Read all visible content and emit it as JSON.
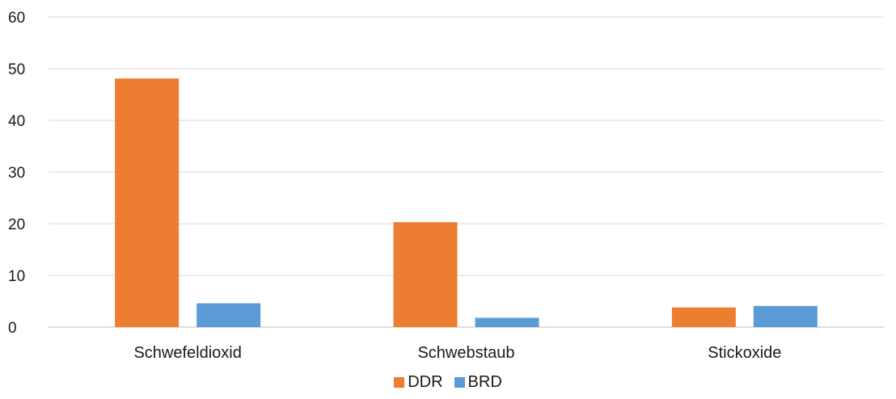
{
  "chart_data": {
    "type": "bar",
    "categories": [
      "Schwefeldioxid",
      "Schwebstaub",
      "Stickoxide"
    ],
    "series": [
      {
        "name": "DDR",
        "values": [
          48.1,
          20.3,
          3.8
        ],
        "color": "#ED7D31"
      },
      {
        "name": "BRD",
        "values": [
          4.6,
          1.8,
          4.1
        ],
        "color": "#5B9BD5"
      }
    ],
    "ylim": [
      0,
      60
    ],
    "yticks": [
      0,
      10,
      20,
      30,
      40,
      50,
      60
    ],
    "grid": true,
    "legend_position": "bottom"
  }
}
